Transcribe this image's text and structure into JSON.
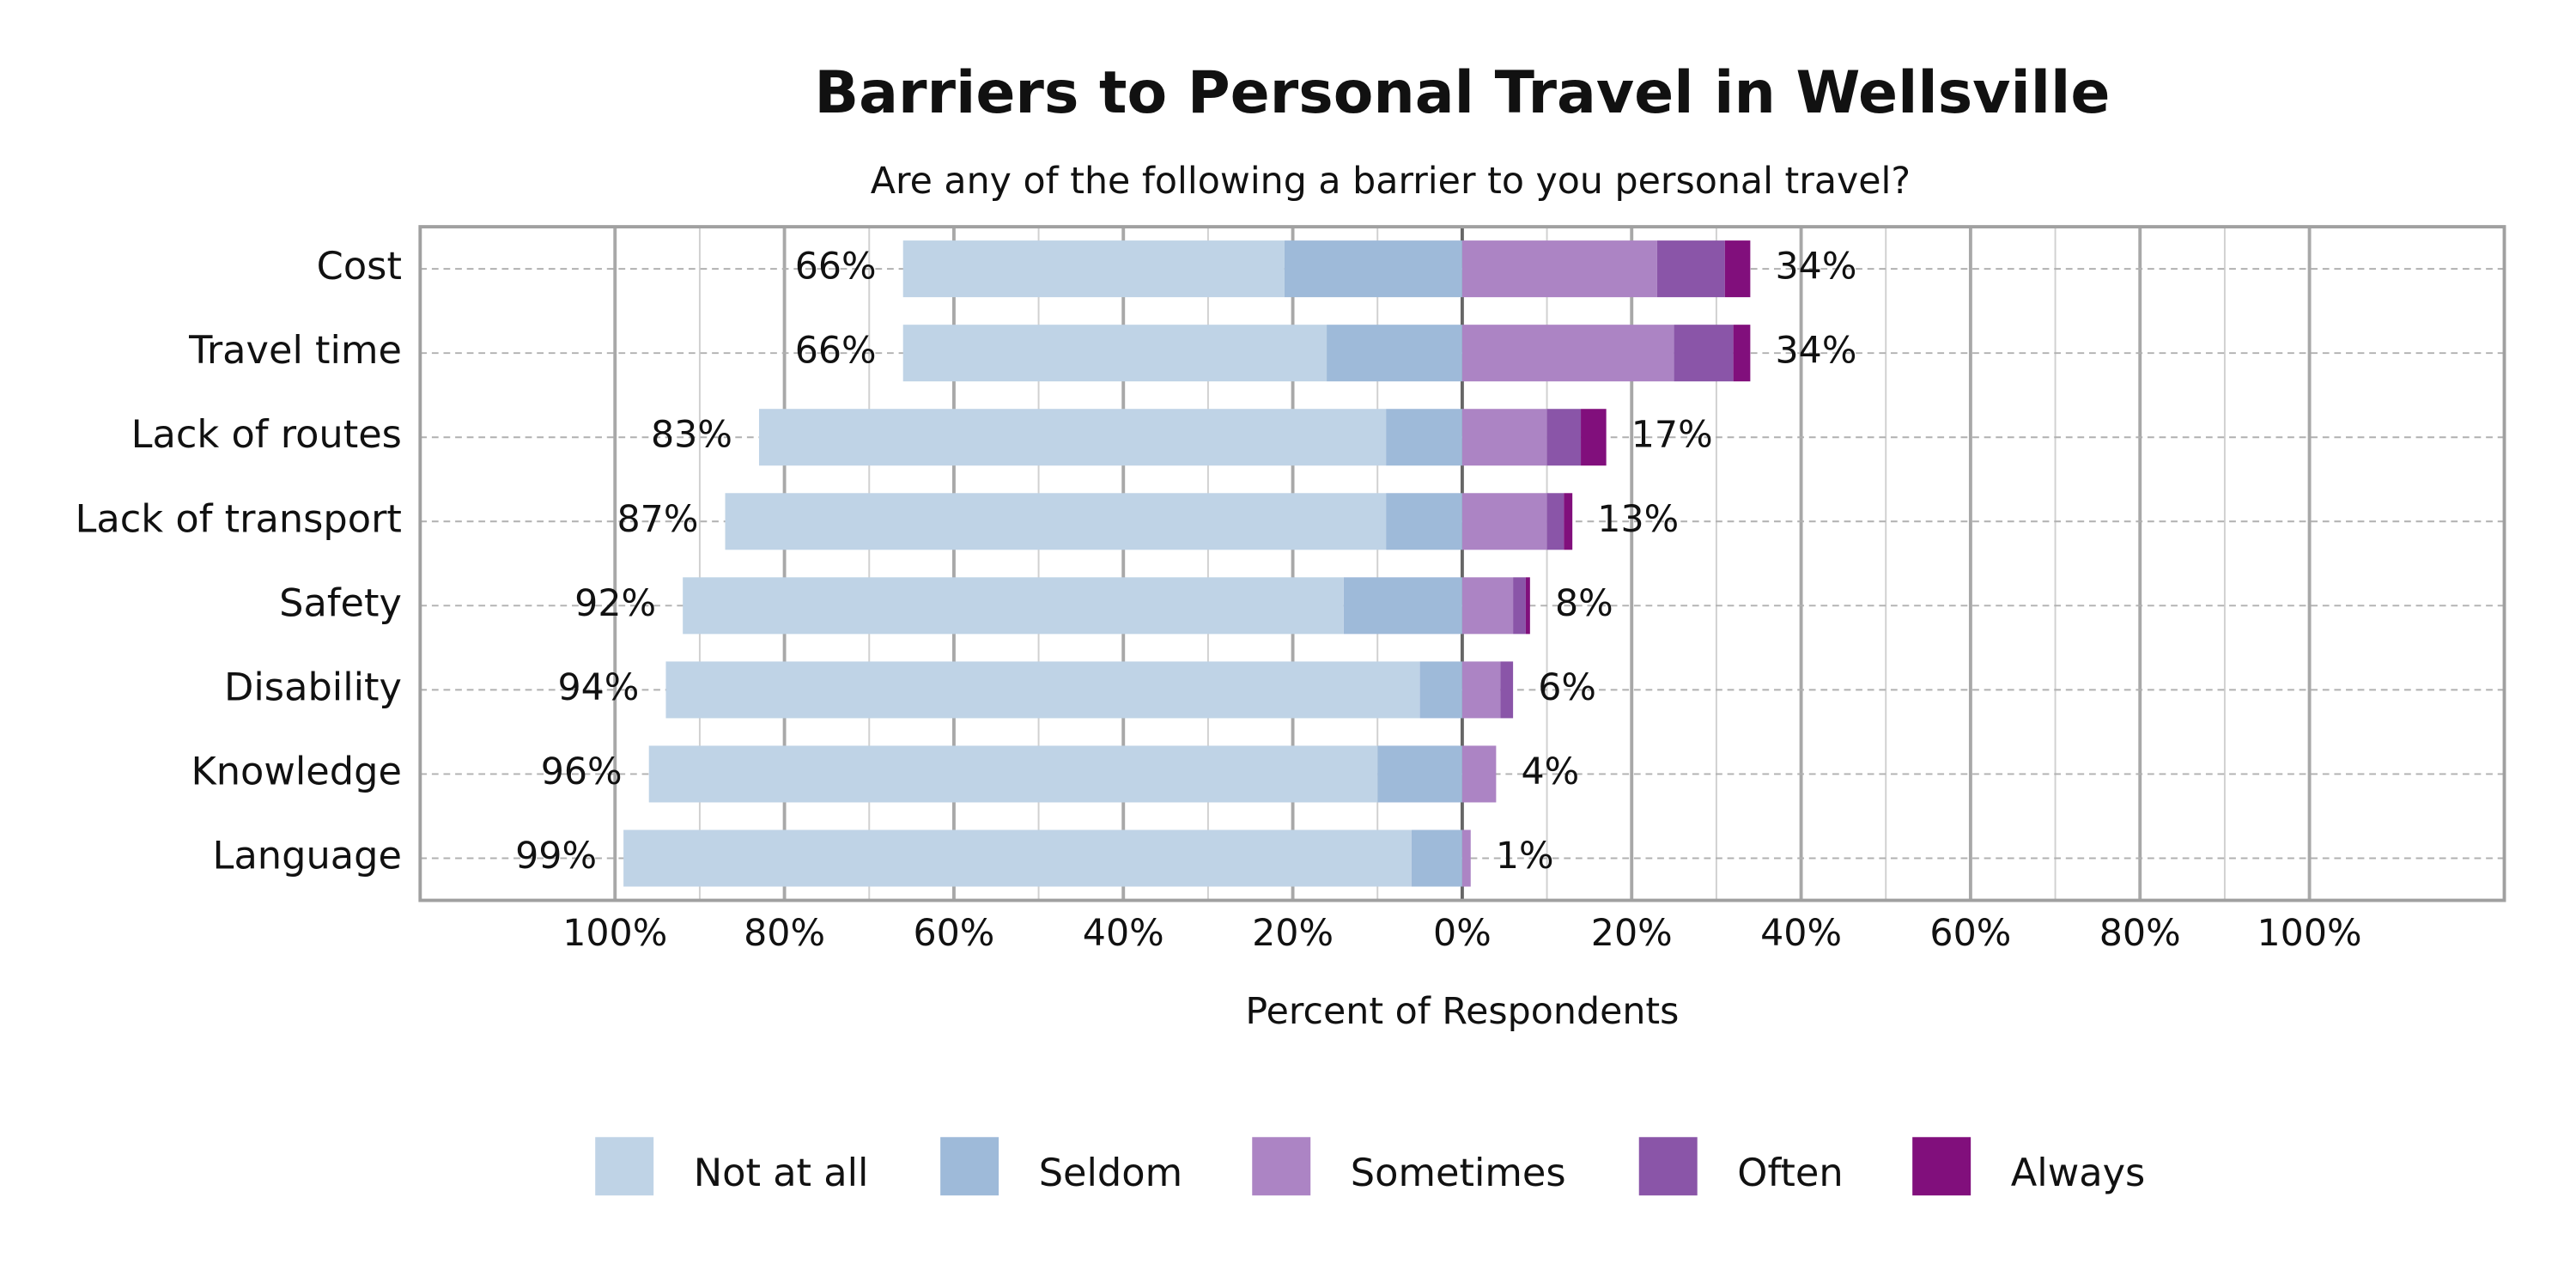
{
  "chart_data": {
    "type": "diverging-bar",
    "title": "Barriers to Personal Travel in Wellsville",
    "subtitle": "Are any of the following a barrier to you personal travel?",
    "x_label": "Percent of Respondents",
    "categories": [
      "Cost",
      "Travel time",
      "Lack of routes",
      "Lack of transport",
      "Safety",
      "Disability",
      "Knowledge",
      "Language"
    ],
    "series": [
      {
        "name": "Not at all",
        "color": "#bfd3e6",
        "side": "left",
        "values": [
          45,
          50,
          74,
          78,
          78,
          89,
          86,
          93
        ]
      },
      {
        "name": "Seldom",
        "color": "#9ebad9",
        "side": "left",
        "values": [
          21,
          16,
          9,
          9,
          14,
          5,
          10,
          6
        ]
      },
      {
        "name": "Sometimes",
        "color": "#ac84c4",
        "side": "right",
        "values": [
          23,
          25,
          10,
          10,
          6,
          4.5,
          4,
          1
        ]
      },
      {
        "name": "Often",
        "color": "#8a55a8",
        "side": "right",
        "values": [
          8,
          7,
          4,
          2,
          1.5,
          1.5,
          0,
          0
        ]
      },
      {
        "name": "Always",
        "color": "#810f7c",
        "side": "right",
        "values": [
          3,
          2,
          3,
          1,
          0.5,
          0,
          0,
          0
        ]
      }
    ],
    "left_totals": [
      66,
      66,
      83,
      87,
      92,
      94,
      96,
      99
    ],
    "left_total_labels": [
      "66%",
      "66%",
      "83%",
      "87%",
      "92%",
      "94%",
      "96%",
      "99%"
    ],
    "right_totals": [
      34,
      34,
      17,
      13,
      8,
      6,
      4,
      1
    ],
    "right_total_labels": [
      "34%",
      "34%",
      "17%",
      "13%",
      "8%",
      "6%",
      "4%",
      "1%"
    ],
    "xlim": [
      -123,
      123
    ],
    "xticks": [
      {
        "value": -100,
        "label": "100%"
      },
      {
        "value": -80,
        "label": "80%"
      },
      {
        "value": -60,
        "label": "60%"
      },
      {
        "value": -40,
        "label": "40%"
      },
      {
        "value": -20,
        "label": "20%"
      },
      {
        "value": 0,
        "label": "0%"
      },
      {
        "value": 20,
        "label": "20%"
      },
      {
        "value": 40,
        "label": "40%"
      },
      {
        "value": 60,
        "label": "60%"
      },
      {
        "value": 80,
        "label": "80%"
      },
      {
        "value": 100,
        "label": "100%"
      }
    ],
    "minor_xticks": [
      -90,
      -70,
      -50,
      -30,
      -10,
      10,
      30,
      50,
      70,
      90
    ],
    "grid": true,
    "legend": "bottom"
  }
}
